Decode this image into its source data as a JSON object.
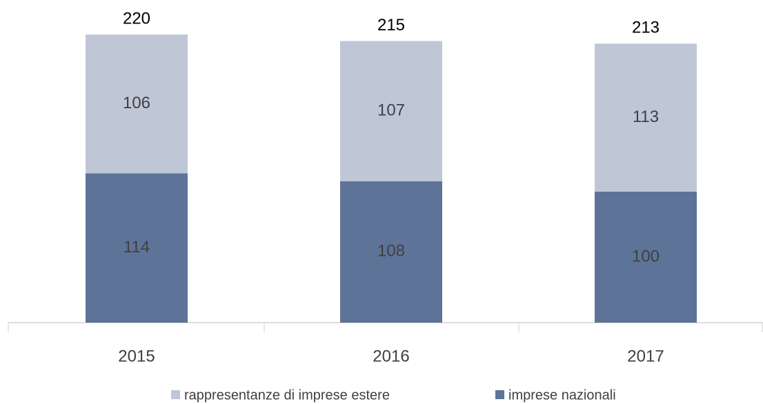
{
  "chart_data": {
    "type": "stacked_bar",
    "categories": [
      "2015",
      "2016",
      "2017"
    ],
    "series": [
      {
        "name": "rappresentanze di imprese estere",
        "color": "#bfc7d7",
        "values": [
          106,
          107,
          113
        ]
      },
      {
        "name": "imprese nazionali",
        "color": "#5e7398",
        "values": [
          114,
          108,
          100
        ]
      }
    ],
    "totals": [
      220,
      215,
      213
    ]
  }
}
